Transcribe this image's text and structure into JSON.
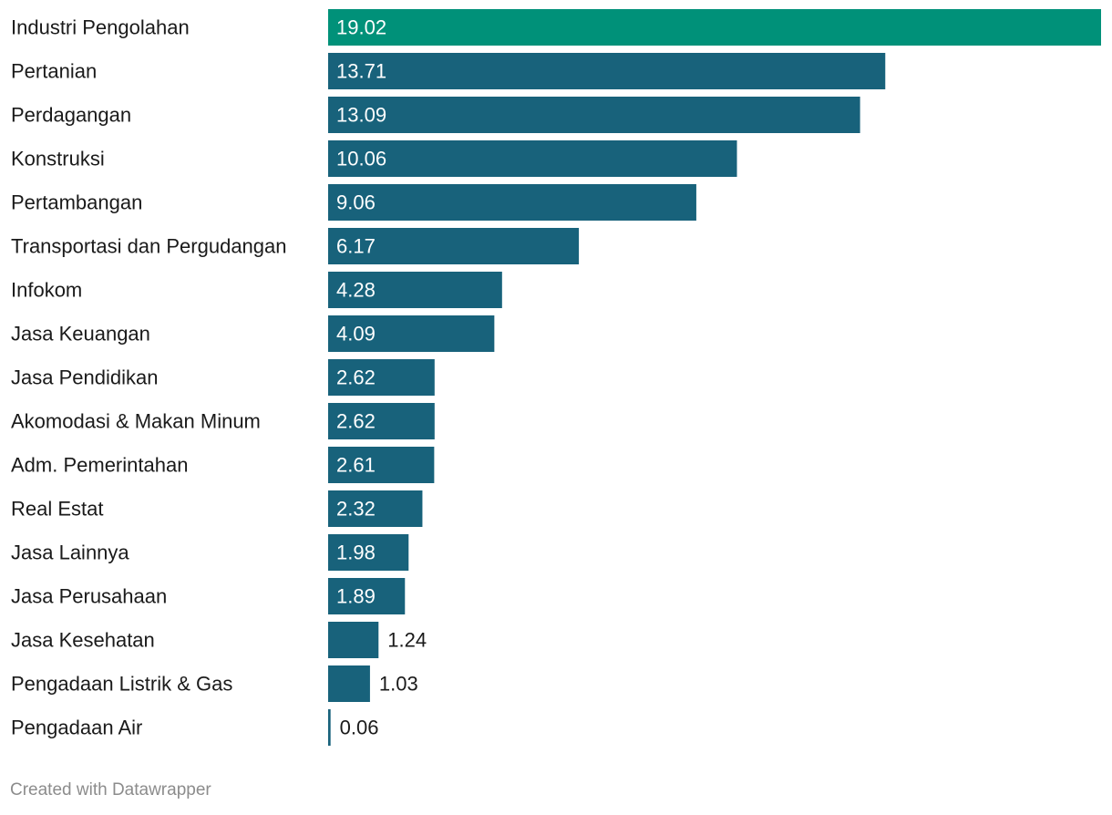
{
  "chart_data": {
    "type": "bar",
    "orientation": "horizontal",
    "categories": [
      "Industri Pengolahan",
      "Pertanian",
      "Perdagangan",
      "Konstruksi",
      "Pertambangan",
      "Transportasi dan Pergudangan",
      "Infokom",
      "Jasa Keuangan",
      "Jasa Pendidikan",
      "Akomodasi & Makan Minum",
      "Adm. Pemerintahan",
      "Real Estat",
      "Jasa Lainnya",
      "Jasa Perusahaan",
      "Jasa Kesehatan",
      "Pengadaan Listrik & Gas",
      "Pengadaan Air"
    ],
    "values": [
      19.02,
      13.71,
      13.09,
      10.06,
      9.06,
      6.17,
      4.28,
      4.09,
      2.62,
      2.62,
      2.61,
      2.32,
      1.98,
      1.89,
      1.24,
      1.03,
      0.06
    ],
    "value_labels": [
      "19.02",
      "13.71",
      "13.09",
      "10.06",
      "9.06",
      "6.17",
      "4.28",
      "4.09",
      "2.62",
      "2.62",
      "2.61",
      "2.32",
      "1.98",
      "1.89",
      "1.24",
      "1.03",
      "0.06"
    ],
    "xlim": [
      0,
      19.02
    ],
    "highlight_index": 0,
    "colors": {
      "highlight": "#009179",
      "default": "#18627b",
      "label_inside": "#ffffff",
      "label_outside": "#1a1a1a"
    },
    "grid": false,
    "legend": "none",
    "title": "",
    "xlabel": "",
    "ylabel": ""
  },
  "footer": {
    "credit": "Created with Datawrapper"
  }
}
